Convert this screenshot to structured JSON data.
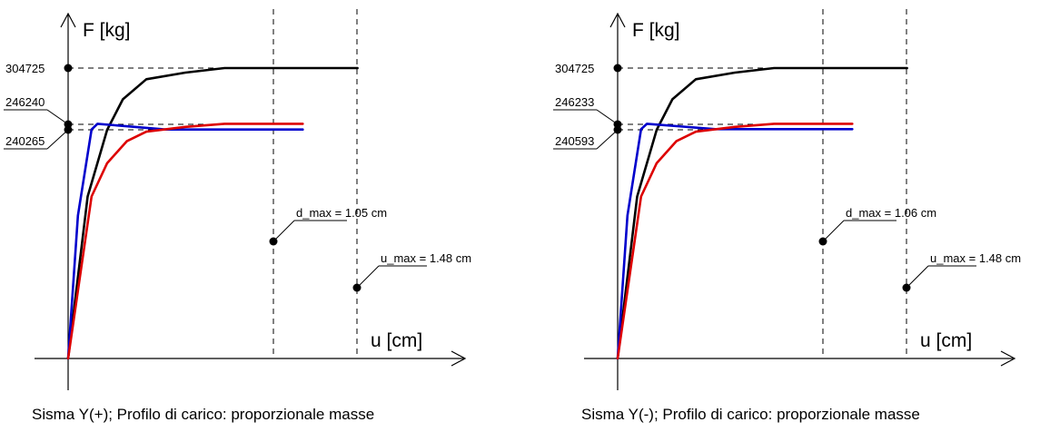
{
  "chart_data": [
    {
      "type": "line",
      "caption": "Sisma Y(+); Profilo di carico: proporzionale masse",
      "ylabel": "F [kg]",
      "xlabel": "u [cm]",
      "y_ticks": [
        "304725",
        "246240",
        "240265"
      ],
      "d_max_label": "d_max = 1.05 cm",
      "u_max_label": "u_max = 1.48 cm",
      "d_max": 1.05,
      "u_max": 1.48,
      "xlim": [
        0,
        2.0
      ],
      "ylim": [
        0,
        360000
      ],
      "series": [
        {
          "color": "#000000",
          "x": [
            0,
            0.1,
            0.2,
            0.28,
            0.4,
            0.6,
            0.8,
            1.0,
            1.2,
            1.48
          ],
          "y": [
            0,
            170000,
            240000,
            272000,
            293000,
            300000,
            304725,
            304725,
            304725,
            304725
          ]
        },
        {
          "color": "#0000cc",
          "x": [
            0,
            0.05,
            0.12,
            0.15,
            0.5,
            1.0,
            1.2
          ],
          "y": [
            0,
            150000,
            240265,
            246240,
            240265,
            240265,
            240265
          ]
        },
        {
          "color": "#dd0000",
          "x": [
            0,
            0.12,
            0.2,
            0.3,
            0.4,
            0.6,
            0.8,
            1.0,
            1.2
          ],
          "y": [
            0,
            170000,
            205000,
            228000,
            238000,
            243000,
            246240,
            246240,
            246240
          ]
        }
      ]
    },
    {
      "type": "line",
      "caption": "Sisma Y(-); Profilo di carico: proporzionale masse",
      "ylabel": "F [kg]",
      "xlabel": "u [cm]",
      "y_ticks": [
        "304725",
        "246233",
        "240593"
      ],
      "d_max_label": "d_max = 1.06 cm",
      "u_max_label": "u_max = 1.48 cm",
      "d_max": 1.06,
      "u_max": 1.48,
      "xlim": [
        0,
        2.0
      ],
      "ylim": [
        0,
        360000
      ],
      "series": [
        {
          "color": "#000000",
          "x": [
            0,
            0.1,
            0.2,
            0.28,
            0.4,
            0.6,
            0.8,
            1.0,
            1.2,
            1.48
          ],
          "y": [
            0,
            170000,
            240000,
            272000,
            293000,
            300000,
            304725,
            304725,
            304725,
            304725
          ]
        },
        {
          "color": "#0000cc",
          "x": [
            0,
            0.05,
            0.12,
            0.15,
            0.5,
            1.0,
            1.2
          ],
          "y": [
            0,
            150000,
            240593,
            246233,
            240593,
            240593,
            240593
          ]
        },
        {
          "color": "#dd0000",
          "x": [
            0,
            0.12,
            0.2,
            0.3,
            0.4,
            0.6,
            0.8,
            1.0,
            1.2
          ],
          "y": [
            0,
            170000,
            205000,
            228000,
            238000,
            243000,
            246233,
            246233,
            246233
          ]
        }
      ]
    }
  ]
}
